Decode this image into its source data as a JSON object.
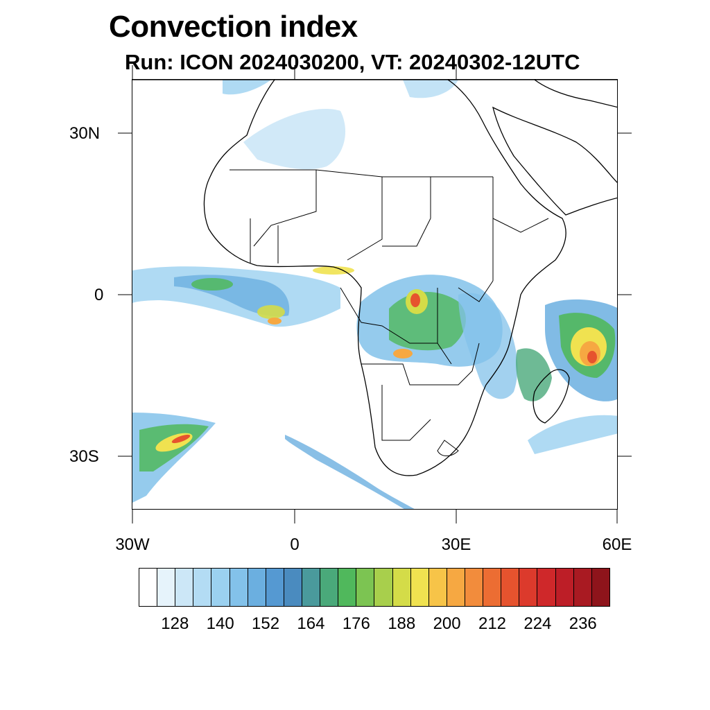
{
  "title": "Convection index",
  "subtitle": "Run: ICON 2024030200,  VT: 20240302-12UTC",
  "map": {
    "lat_labels": [
      "30N",
      "0",
      "30S"
    ],
    "lon_labels": [
      "30W",
      "0",
      "30E",
      "60E"
    ],
    "lat_range": [
      -40,
      40
    ],
    "lon_range": [
      -30,
      60
    ],
    "projection": "cylindrical equidistant",
    "coastline_color": "#000000",
    "border_color": "#000000"
  },
  "colorbar": {
    "colors": [
      "#ffffff",
      "#e6f3fb",
      "#cce7f7",
      "#b3dcf4",
      "#9bd1f0",
      "#83c2ea",
      "#6bafe0",
      "#5599d2",
      "#4a8bbf",
      "#4a9a9c",
      "#4aa97a",
      "#50b85c",
      "#7cc452",
      "#a8cf4c",
      "#d4dc48",
      "#f0e250",
      "#f7c448",
      "#f6a842",
      "#f28c3c",
      "#ec6d33",
      "#e6532e",
      "#dc3a2c",
      "#cf282a",
      "#bd1e27",
      "#a91a22",
      "#8e141b"
    ],
    "tick_labels": [
      "128",
      "140",
      "152",
      "164",
      "176",
      "188",
      "200",
      "212",
      "224",
      "236"
    ]
  }
}
